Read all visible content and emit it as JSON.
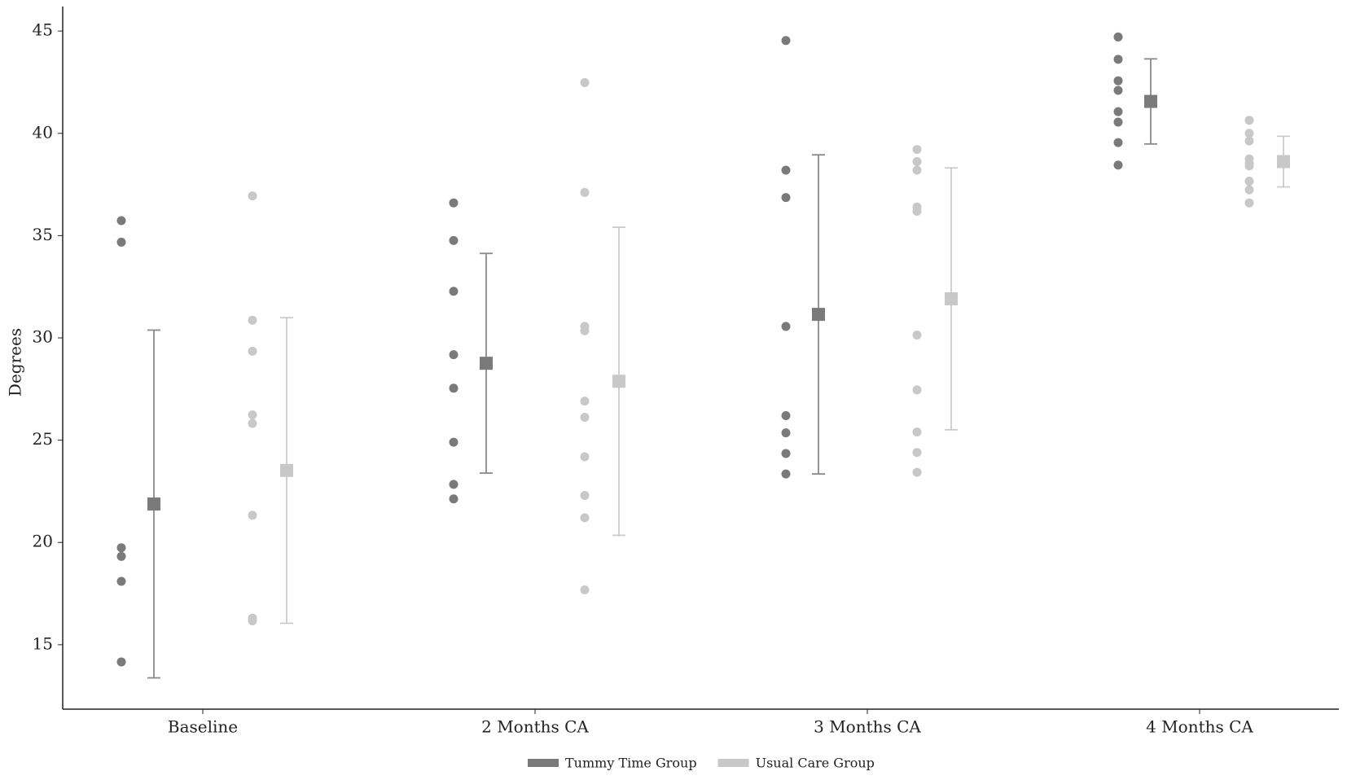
{
  "chart_data": {
    "type": "dot-errorbar",
    "y_label": "Degrees",
    "categories": [
      "Baseline",
      "2 Months CA",
      "3 Months CA",
      "4 Months CA"
    ],
    "ylim": [
      11.85,
      46.2
    ],
    "yticks": [
      15,
      20,
      25,
      30,
      35,
      40,
      45
    ],
    "series": [
      {
        "name": "Tummy Time Group",
        "color": "#7a7a7a",
        "bar_color": "#8a8a8a",
        "values": [
          21.88,
          28.76,
          31.15,
          41.56
        ],
        "error": [
          8.5,
          5.37,
          7.8,
          2.08
        ],
        "points": [
          [
            35.73,
            34.68,
            19.74,
            19.32,
            18.1,
            14.16
          ],
          [
            36.6,
            34.76,
            32.28,
            29.18,
            27.54,
            24.9,
            22.84,
            22.13
          ],
          [
            44.54,
            38.2,
            36.86,
            30.56,
            26.2,
            25.36,
            24.35,
            23.35
          ],
          [
            44.71,
            43.62,
            42.57,
            42.1,
            41.06,
            40.55,
            39.55,
            38.45
          ]
        ]
      },
      {
        "name": "Usual Care Group",
        "color": "#c8c8c8",
        "bar_color": "#cccccc",
        "values": [
          23.52,
          27.88,
          31.91,
          38.62
        ],
        "error": [
          7.47,
          7.53,
          6.4,
          1.24
        ],
        "points": [
          [
            36.94,
            30.86,
            29.35,
            26.24,
            25.82,
            21.33,
            16.3,
            16.17
          ],
          [
            42.48,
            37.11,
            30.56,
            30.35,
            26.91,
            26.12,
            24.19,
            22.3,
            21.21,
            17.68
          ],
          [
            39.21,
            38.62,
            38.2,
            36.4,
            36.19,
            30.14,
            27.46,
            25.4,
            24.4,
            23.43
          ],
          [
            40.64,
            40.0,
            39.63,
            38.75,
            38.54,
            38.41,
            37.66,
            37.24,
            36.6
          ]
        ]
      }
    ]
  }
}
